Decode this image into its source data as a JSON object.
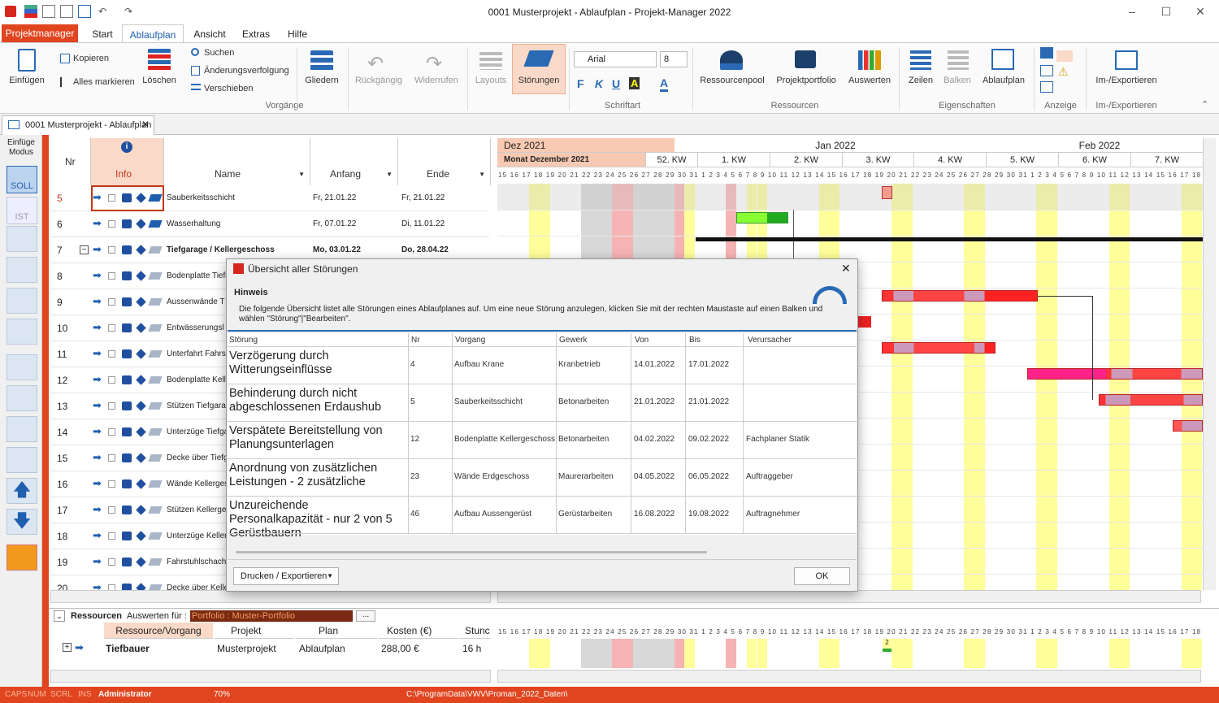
{
  "window": {
    "title": "0001 Musterprojekt - Ablaufplan - Projekt-Manager 2022"
  },
  "menu": {
    "app": "Projektmanager",
    "tabs": [
      "Start",
      "Ablaufplan",
      "Ansicht",
      "Extras",
      "Hilfe"
    ]
  },
  "ribbon": {
    "einfuegen": "Einfügen",
    "kopieren": "Kopieren",
    "alles_markieren": "Alles markieren",
    "loeschen": "Löschen",
    "suchen": "Suchen",
    "aenderung": "Änderungsverfolgung",
    "verschieben": "Verschieben",
    "gliedern": "Gliedern",
    "rueckgaengig": "Rückgängig",
    "widerrufen": "Widerrufen",
    "layouts": "Layouts",
    "stoerungen": "Störungen",
    "font": "Arial",
    "size": "8",
    "fmt_bold": "F",
    "fmt_italic": "K",
    "fmt_underline": "U",
    "fmt_bg": "A",
    "fmt_color": "A",
    "ressourcenpool": "Ressourcenpool",
    "projektportfolio": "Projektportfolio",
    "auswerten": "Auswerten",
    "zeilen": "Zeilen",
    "balken": "Balken",
    "ablaufplan": "Ablaufplan",
    "imexport": "Im-/Exportieren",
    "groups": {
      "vorgaenge": "Vorgänge",
      "schriftart": "Schriftart",
      "ressourcen": "Ressourcen",
      "eigenschaften": "Eigenschaften",
      "anzeige": "Anzeige",
      "imexport": "Im-/Exportieren"
    }
  },
  "doc_tab": "0001 Musterprojekt - Ablaufplan",
  "left_tools": {
    "mode": "Einfüge Modus",
    "soll": "SOLL",
    "ist": "IST"
  },
  "columns": {
    "nr": "Nr",
    "info": "Info",
    "name": "Name",
    "anfang": "Anfang",
    "ende": "Ende"
  },
  "rows": [
    {
      "nr": "5",
      "name": "Sauberkeitsschicht",
      "anfang": "Fr, 21.01.22",
      "ende": "Fr, 21.01.22",
      "bold": false
    },
    {
      "nr": "6",
      "name": "Wasserhaltung",
      "anfang": "Fr, 07.01.22",
      "ende": "Di, 11.01.22",
      "bold": false
    },
    {
      "nr": "7",
      "name": "Tiefgarage / Kellergeschoss",
      "anfang": "Mo, 03.01.22",
      "ende": "Do, 28.04.22",
      "bold": true
    },
    {
      "nr": "8",
      "name": "Bodenplatte Tiefg",
      "anfang": "",
      "ende": "",
      "bold": false
    },
    {
      "nr": "9",
      "name": "Aussenwände T",
      "anfang": "",
      "ende": "",
      "bold": false
    },
    {
      "nr": "10",
      "name": "Entwässerungsl",
      "anfang": "",
      "ende": "",
      "bold": false
    },
    {
      "nr": "11",
      "name": "Unterfahrt Fahrs",
      "anfang": "",
      "ende": "",
      "bold": false
    },
    {
      "nr": "12",
      "name": "Bodenplatte Kell",
      "anfang": "",
      "ende": "",
      "bold": false
    },
    {
      "nr": "13",
      "name": "Stützen Tiefgara",
      "anfang": "",
      "ende": "",
      "bold": false
    },
    {
      "nr": "14",
      "name": "Unterzüge Tiefga",
      "anfang": "",
      "ende": "",
      "bold": false
    },
    {
      "nr": "15",
      "name": "Decke über Tiefg",
      "anfang": "",
      "ende": "",
      "bold": false
    },
    {
      "nr": "16",
      "name": "Wände Kellerges",
      "anfang": "",
      "ende": "",
      "bold": false
    },
    {
      "nr": "17",
      "name": "Stützen Kellerge",
      "anfang": "",
      "ende": "",
      "bold": false
    },
    {
      "nr": "18",
      "name": "Unterzüge Keller",
      "anfang": "",
      "ende": "",
      "bold": false
    },
    {
      "nr": "19",
      "name": "Fahrstuhlschach",
      "anfang": "",
      "ende": "",
      "bold": false
    },
    {
      "nr": "20",
      "name": "Decke über Kelle",
      "anfang": "",
      "ende": "",
      "bold": false
    }
  ],
  "gantt": {
    "months": [
      "Dez 2021",
      "Jan 2022",
      "Feb 2022"
    ],
    "sub": "Monat Dezember 2021",
    "weeks": [
      "52. KW",
      "1. KW",
      "2. KW",
      "3. KW",
      "4. KW",
      "5. KW",
      "6. KW",
      "7. KW"
    ],
    "days": "15 16 17 18 19 20 21 22 23 24 25 26 27 28 29 30 31 1 2 3 4 5 6 7 8 9 10 11 12 13 14 15 16 17 18 19 20 21 22 23 24 25 26 27 28 29 30 31 1 2 3 4 5 6 7 8 9 10 11 12 13 14 15 16 17 18 19 20"
  },
  "dialog": {
    "title": "Übersicht aller Störungen",
    "hint_title": "Hinweis",
    "hint": "Die folgende Übersicht listet alle Störungen eines Ablaufplanes auf. Um eine neue Störung anzulegen, klicken Sie mit der rechten Maustaste auf einen Balken und wählen \"Störung\"|\"Bearbeiten\".",
    "headers": [
      "Störung",
      "Nr",
      "Vorgang",
      "Gewerk",
      "Von",
      "Bis",
      "Verursacher"
    ],
    "rows": [
      {
        "stoerung": "Verzögerung durch Witterungseinflüsse",
        "nr": "4",
        "vorgang": "Aufbau Krane",
        "gewerk": "Kranbetrieb",
        "von": "14.01.2022",
        "bis": "17.01.2022",
        "verursacher": ""
      },
      {
        "stoerung": "Behinderung durch nicht abgeschlossenen Erdaushub",
        "nr": "5",
        "vorgang": "Sauberkeitsschicht",
        "gewerk": "Betonarbeiten",
        "von": "21.01.2022",
        "bis": "21.01.2022",
        "verursacher": ""
      },
      {
        "stoerung": "Verspätete Bereitstellung von Planungsunterlagen",
        "nr": "12",
        "vorgang": "Bodenplatte Kellergeschoss",
        "gewerk": "Betonarbeiten",
        "von": "04.02.2022",
        "bis": "09.02.2022",
        "verursacher": "Fachplaner Statik"
      },
      {
        "stoerung": "Anordnung von zusätzlichen Leistungen - 2 zusätzliche",
        "nr": "23",
        "vorgang": "Wände Erdgeschoss",
        "gewerk": "Maurerarbeiten",
        "von": "04.05.2022",
        "bis": "06.05.2022",
        "verursacher": "Auftraggeber"
      },
      {
        "stoerung": "Unzureichende Personalkapazität - nur 2 von 5 Gerüstbauern",
        "nr": "46",
        "vorgang": "Aufbau Aussengerüst",
        "gewerk": "Gerüstarbeiten",
        "von": "16.08.2022",
        "bis": "19.08.2022",
        "verursacher": "Auftragnehmer"
      }
    ],
    "print": "Drucken / Exportieren",
    "ok": "OK"
  },
  "resources": {
    "label": "Ressourcen",
    "auswerten": "Auswerten für :",
    "portfolio": "Portfolio : Muster-Portfolio",
    "dots": "...",
    "cols": [
      "Ressource/Vorgang",
      "Projekt",
      "Plan",
      "Kosten (€)",
      "Stunc"
    ],
    "row": {
      "name": "Tiefbauer",
      "projekt": "Musterprojekt",
      "plan": "Ablaufplan",
      "kosten": "288,00 €",
      "stunden": "16 h"
    },
    "mark": "2"
  },
  "status": {
    "caps": "CAPS",
    "num": "NUM",
    "scrl": "SCRL",
    "ins": "INS",
    "user": "Administrator",
    "zoom": "70%",
    "path": "C:\\ProgramData\\VWV\\Proman_2022_Daten\\"
  }
}
